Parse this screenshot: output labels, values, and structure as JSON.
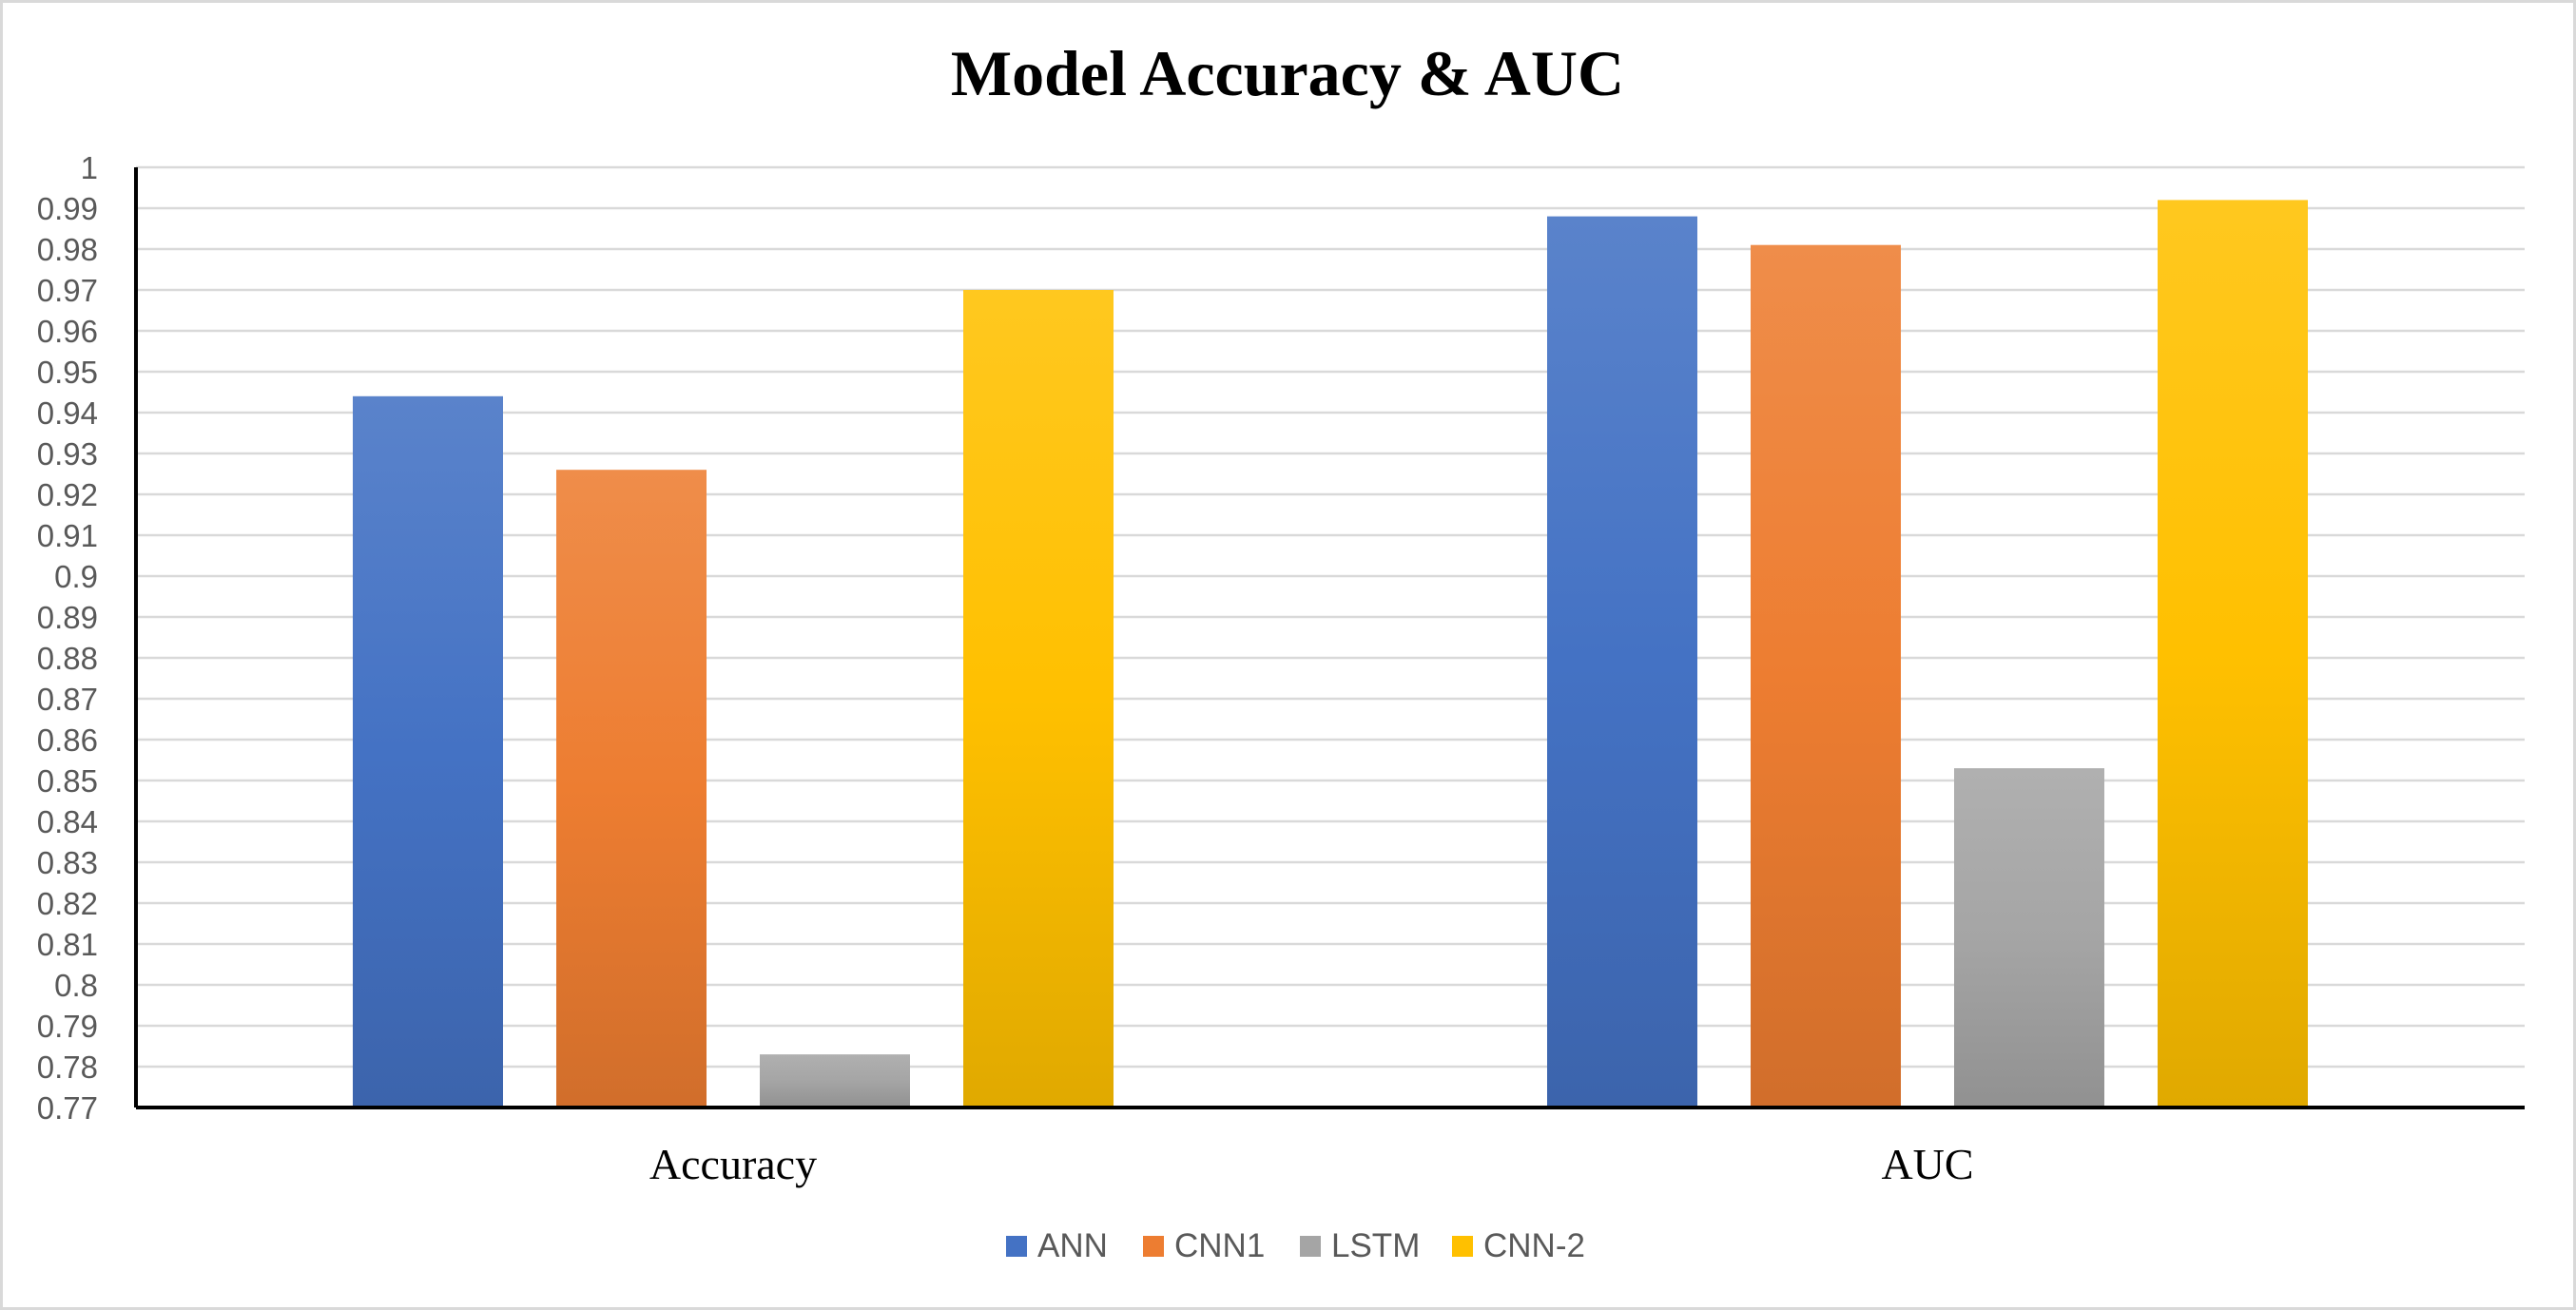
{
  "chart_data": {
    "type": "bar",
    "title": "Model Accuracy & AUC",
    "xlabel": "",
    "ylabel": "",
    "categories": [
      "Accuracy",
      "AUC"
    ],
    "series": [
      {
        "name": "ANN",
        "values": [
          0.944,
          0.988
        ],
        "color": "#4472c4"
      },
      {
        "name": "CNN1",
        "values": [
          0.926,
          0.981
        ],
        "color": "#ed7d31"
      },
      {
        "name": "LSTM",
        "values": [
          0.783,
          0.853
        ],
        "color": "#a5a5a5"
      },
      {
        "name": "CNN-2",
        "values": [
          0.97,
          0.992
        ],
        "color": "#ffc000"
      }
    ],
    "ylim": [
      0.77,
      1.0
    ],
    "yticks": [
      "0.77",
      "0.78",
      "0.79",
      "0.8",
      "0.81",
      "0.82",
      "0.83",
      "0.84",
      "0.85",
      "0.86",
      "0.87",
      "0.88",
      "0.89",
      "0.9",
      "0.91",
      "0.92",
      "0.93",
      "0.94",
      "0.95",
      "0.96",
      "0.97",
      "0.98",
      "0.99",
      "1"
    ],
    "grid": true,
    "legend_position": "bottom"
  }
}
